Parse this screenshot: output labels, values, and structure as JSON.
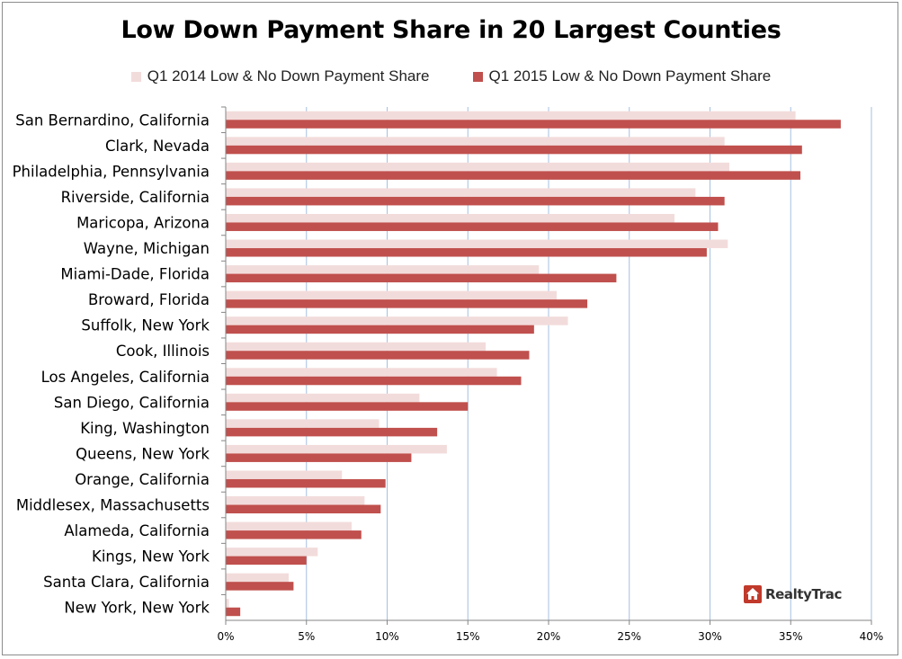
{
  "chart_data": {
    "type": "bar",
    "orientation": "horizontal",
    "title": "Low Down Payment Share in 20 Largest Counties",
    "categories": [
      "San Bernardino, California",
      "Clark, Nevada",
      "Philadelphia, Pennsylvania",
      "Riverside, California",
      "Maricopa, Arizona",
      "Wayne, Michigan",
      "Miami-Dade, Florida",
      "Broward, Florida",
      "Suffolk, New York",
      "Cook, Illinois",
      "Los Angeles, California",
      "San Diego, California",
      "King, Washington",
      "Queens, New York",
      "Orange, California",
      "Middlesex, Massachusetts",
      "Alameda, California",
      "Kings, New York",
      "Santa Clara, California",
      "New York, New York"
    ],
    "series": [
      {
        "name": "Q1 2014 Low & No Down Payment Share",
        "color": "#f2dcdb",
        "values": [
          35.3,
          30.9,
          31.2,
          29.1,
          27.8,
          31.1,
          19.4,
          20.5,
          21.2,
          16.1,
          16.8,
          12.0,
          9.5,
          13.7,
          7.2,
          8.6,
          7.8,
          5.7,
          3.9,
          0.2
        ]
      },
      {
        "name": "Q1 2015 Low & No Down Payment Share",
        "color": "#c0504d",
        "values": [
          38.1,
          35.7,
          35.6,
          30.9,
          30.5,
          29.8,
          24.2,
          22.4,
          19.1,
          18.8,
          18.3,
          15.0,
          13.1,
          11.5,
          9.9,
          9.6,
          8.4,
          5.0,
          4.2,
          0.9
        ]
      }
    ],
    "x_ticks": [
      "0%",
      "5%",
      "10%",
      "15%",
      "20%",
      "25%",
      "30%",
      "35%",
      "40%"
    ],
    "xlim": [
      0,
      40
    ],
    "grid": true,
    "legend_position": "top"
  },
  "logo": {
    "text": "RealtyTrac",
    "icon": "house-icon"
  },
  "colors": {
    "gridline": "#a6bfe0",
    "axis": "#868686"
  }
}
